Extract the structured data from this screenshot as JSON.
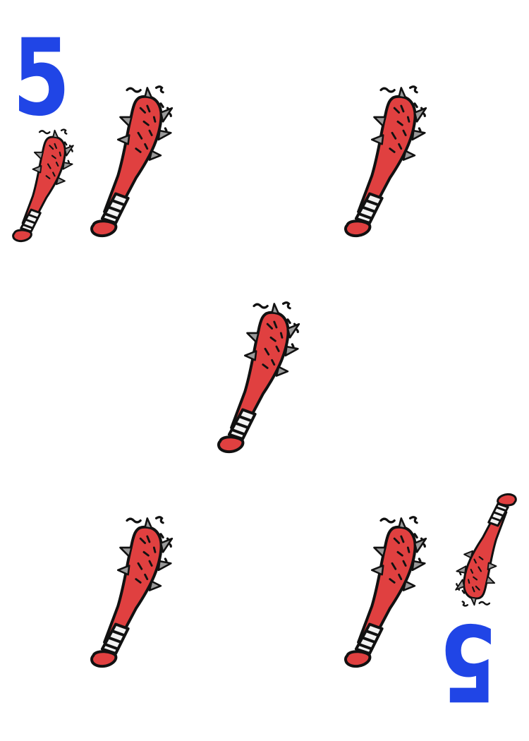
{
  "card": {
    "rank": "5",
    "pip_count": 5,
    "pip": {
      "icon": "spiked-bat-icon",
      "colors": {
        "bat": "#e04040",
        "outline": "#111111",
        "grip": "#f2f2f2",
        "rank": "#2045e6"
      }
    }
  }
}
